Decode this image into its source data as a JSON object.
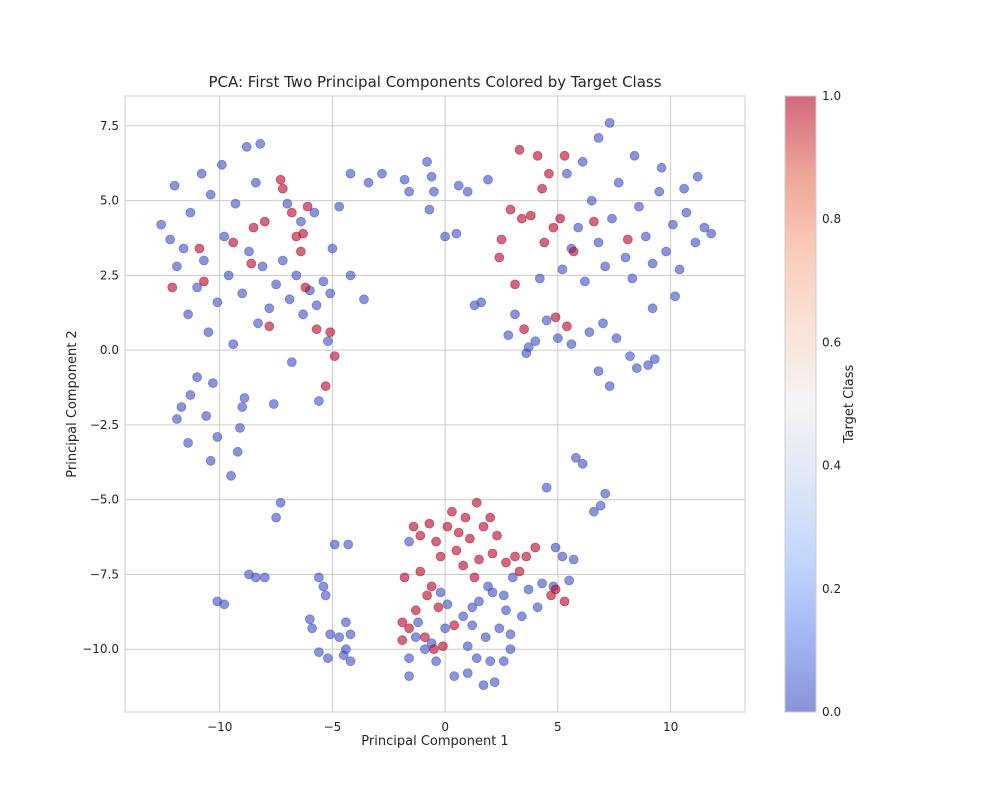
{
  "chart_data": {
    "type": "scatter",
    "title": "PCA: First Two Principal Components Colored by Target Class",
    "xlabel": "Principal Component 1",
    "ylabel": "Principal Component 2",
    "xlim": [
      -14.2,
      13.3
    ],
    "ylim": [
      -12.1,
      8.5
    ],
    "xticks": [
      -10,
      -5,
      0,
      5,
      10
    ],
    "xtick_labels": [
      "−10",
      "−5",
      "0",
      "5",
      "10"
    ],
    "yticks": [
      -10,
      -7.5,
      -5,
      -2.5,
      0,
      2.5,
      5,
      7.5
    ],
    "ytick_labels": [
      "−10.0",
      "−7.5",
      "−5.0",
      "−2.5",
      "0.0",
      "2.5",
      "5.0",
      "7.5"
    ],
    "grid": true,
    "colormap": "coolwarm",
    "colors": {
      "class_0": "#3b4cc0",
      "class_1": "#b40426"
    },
    "marker_alpha": 0.6,
    "colorbar": {
      "label": "Target Class",
      "range": [
        0,
        1
      ],
      "ticks": [
        0,
        0.2,
        0.4,
        0.6,
        0.8,
        1
      ],
      "tick_labels": [
        "0.0",
        "0.2",
        "0.4",
        "0.6",
        "0.8",
        "1.0"
      ],
      "stops": [
        "#3b4cc0",
        "#6788ee",
        "#9abbff",
        "#c9d7f0",
        "#ededed",
        "#f6cfbb",
        "#f7a889",
        "#e26952",
        "#b40426"
      ]
    },
    "series": [
      {
        "target": 0,
        "points": [
          [
            -12.6,
            4.2
          ],
          [
            -12.2,
            3.7
          ],
          [
            -11.9,
            2.8
          ],
          [
            -11.6,
            3.4
          ],
          [
            -11.3,
            4.6
          ],
          [
            -11.0,
            2.1
          ],
          [
            -10.7,
            3.0
          ],
          [
            -10.4,
            5.2
          ],
          [
            -10.1,
            1.6
          ],
          [
            -9.8,
            3.8
          ],
          [
            -9.6,
            2.5
          ],
          [
            -9.3,
            4.9
          ],
          [
            -9.0,
            1.9
          ],
          [
            -8.7,
            3.3
          ],
          [
            -8.4,
            5.6
          ],
          [
            -8.1,
            2.8
          ],
          [
            -7.8,
            1.4
          ],
          [
            -7.5,
            2.2
          ],
          [
            -7.2,
            3.0
          ],
          [
            -6.9,
            1.7
          ],
          [
            -6.6,
            2.5
          ],
          [
            -6.3,
            1.2
          ],
          [
            -6.0,
            2.0
          ],
          [
            -5.7,
            1.5
          ],
          [
            -5.4,
            2.3
          ],
          [
            -5.1,
            1.9
          ],
          [
            -10.5,
            0.6
          ],
          [
            -9.4,
            0.2
          ],
          [
            -8.3,
            0.9
          ],
          [
            -11.4,
            1.2
          ],
          [
            -12.0,
            5.5
          ],
          [
            -10.8,
            5.9
          ],
          [
            -9.9,
            6.2
          ],
          [
            -8.8,
            6.8
          ],
          [
            -8.2,
            6.9
          ],
          [
            -7.0,
            4.9
          ],
          [
            -6.4,
            4.3
          ],
          [
            -5.8,
            4.6
          ],
          [
            -5.0,
            3.4
          ],
          [
            -4.7,
            4.8
          ],
          [
            -4.2,
            2.5
          ],
          [
            -3.6,
            1.7
          ],
          [
            -5.2,
            0.3
          ],
          [
            -6.8,
            -0.4
          ],
          [
            -7.6,
            -1.8
          ],
          [
            -5.6,
            -1.7
          ],
          [
            -11.0,
            -0.9
          ],
          [
            -11.3,
            -1.5
          ],
          [
            -11.7,
            -1.9
          ],
          [
            -11.9,
            -2.3
          ],
          [
            -11.4,
            -3.1
          ],
          [
            -10.3,
            -1.1
          ],
          [
            -10.6,
            -2.2
          ],
          [
            -10.1,
            -2.9
          ],
          [
            -9.1,
            -2.6
          ],
          [
            -9.2,
            -3.4
          ],
          [
            -9.5,
            -4.2
          ],
          [
            -10.4,
            -3.7
          ],
          [
            -9.0,
            -1.9
          ],
          [
            -8.9,
            -1.6
          ],
          [
            -4.2,
            5.9
          ],
          [
            -3.4,
            5.6
          ],
          [
            -2.8,
            5.9
          ],
          [
            -1.8,
            5.7
          ],
          [
            -1.6,
            5.3
          ],
          [
            -0.8,
            6.3
          ],
          [
            -0.6,
            5.8
          ],
          [
            -0.5,
            5.3
          ],
          [
            0.6,
            5.5
          ],
          [
            1.0,
            5.3
          ],
          [
            1.9,
            5.7
          ],
          [
            -0.7,
            4.7
          ],
          [
            0.0,
            3.8
          ],
          [
            0.5,
            3.9
          ],
          [
            1.3,
            1.5
          ],
          [
            1.6,
            1.6
          ],
          [
            -7.3,
            -5.1
          ],
          [
            -7.5,
            -5.6
          ],
          [
            -8.7,
            -7.5
          ],
          [
            -8.4,
            -7.6
          ],
          [
            -8.0,
            -7.6
          ],
          [
            -10.1,
            -8.4
          ],
          [
            -9.8,
            -8.5
          ],
          [
            -5.6,
            -7.6
          ],
          [
            -5.4,
            -7.9
          ],
          [
            -5.3,
            -8.2
          ],
          [
            -6.0,
            -9.0
          ],
          [
            -5.9,
            -9.3
          ],
          [
            -5.1,
            -9.5
          ],
          [
            -4.4,
            -9.1
          ],
          [
            -4.2,
            -9.5
          ],
          [
            -4.7,
            -9.6
          ],
          [
            -4.4,
            -10.0
          ],
          [
            -5.6,
            -10.1
          ],
          [
            -5.2,
            -10.3
          ],
          [
            -4.5,
            -10.2
          ],
          [
            -4.2,
            -10.4
          ],
          [
            -4.9,
            -6.5
          ],
          [
            -4.3,
            -6.5
          ],
          [
            -1.6,
            -6.4
          ],
          [
            5.2,
            2.7
          ],
          [
            5.6,
            3.4
          ],
          [
            5.9,
            4.1
          ],
          [
            6.2,
            2.3
          ],
          [
            6.5,
            5.0
          ],
          [
            6.8,
            3.6
          ],
          [
            7.1,
            2.8
          ],
          [
            7.4,
            4.4
          ],
          [
            7.7,
            5.6
          ],
          [
            8.0,
            3.1
          ],
          [
            8.3,
            2.4
          ],
          [
            8.6,
            4.8
          ],
          [
            8.9,
            3.8
          ],
          [
            9.2,
            2.9
          ],
          [
            9.5,
            5.3
          ],
          [
            9.8,
            3.3
          ],
          [
            10.1,
            4.2
          ],
          [
            10.4,
            2.7
          ],
          [
            10.7,
            4.6
          ],
          [
            11.1,
            3.6
          ],
          [
            11.5,
            4.1
          ],
          [
            11.8,
            3.9
          ],
          [
            5.4,
            5.9
          ],
          [
            6.1,
            6.3
          ],
          [
            6.8,
            7.1
          ],
          [
            7.3,
            7.6
          ],
          [
            8.4,
            6.5
          ],
          [
            9.6,
            6.1
          ],
          [
            10.6,
            5.4
          ],
          [
            11.2,
            5.8
          ],
          [
            5.0,
            0.4
          ],
          [
            5.6,
            0.2
          ],
          [
            6.4,
            0.6
          ],
          [
            7.0,
            0.9
          ],
          [
            7.6,
            0.4
          ],
          [
            8.2,
            -0.2
          ],
          [
            8.5,
            -0.6
          ],
          [
            9.0,
            -0.5
          ],
          [
            9.3,
            -0.3
          ],
          [
            7.3,
            -1.2
          ],
          [
            6.8,
            -0.7
          ],
          [
            9.2,
            1.4
          ],
          [
            10.2,
            1.8
          ],
          [
            4.5,
            1.0
          ],
          [
            4.0,
            0.3
          ],
          [
            3.1,
            1.2
          ],
          [
            2.8,
            0.5
          ],
          [
            3.7,
            0.1
          ],
          [
            4.2,
            2.4
          ],
          [
            3.6,
            -0.1
          ],
          [
            7.1,
            -4.8
          ],
          [
            6.9,
            -5.2
          ],
          [
            6.6,
            -5.4
          ],
          [
            5.8,
            -3.6
          ],
          [
            6.1,
            -3.8
          ],
          [
            4.5,
            -4.6
          ],
          [
            4.9,
            -6.6
          ],
          [
            5.2,
            -6.9
          ],
          [
            5.7,
            -7.0
          ],
          [
            4.3,
            -7.8
          ],
          [
            4.8,
            -7.9
          ],
          [
            5.5,
            -7.7
          ],
          [
            3.7,
            -8.0
          ],
          [
            4.1,
            -8.6
          ],
          [
            3.4,
            -8.9
          ],
          [
            3.0,
            -7.6
          ],
          [
            -0.2,
            -8.1
          ],
          [
            0.1,
            -8.5
          ],
          [
            0.8,
            -8.9
          ],
          [
            1.2,
            -9.2
          ],
          [
            1.5,
            -8.4
          ],
          [
            1.8,
            -9.6
          ],
          [
            2.1,
            -8.1
          ],
          [
            2.4,
            -9.3
          ],
          [
            2.7,
            -8.7
          ],
          [
            1.0,
            -9.9
          ],
          [
            1.4,
            -10.3
          ],
          [
            2.0,
            -10.4
          ],
          [
            2.6,
            -10.4
          ],
          [
            1.7,
            -11.2
          ],
          [
            1.0,
            -10.8
          ],
          [
            0.4,
            -10.9
          ],
          [
            -0.4,
            -10.4
          ],
          [
            -0.9,
            -10.0
          ],
          [
            -1.3,
            -9.6
          ],
          [
            -1.6,
            -10.3
          ],
          [
            -1.6,
            -10.9
          ],
          [
            -1.2,
            -9.1
          ],
          [
            -0.6,
            -9.8
          ],
          [
            0.0,
            -9.3
          ],
          [
            2.2,
            -11.1
          ],
          [
            2.9,
            -10.0
          ],
          [
            2.6,
            -8.2
          ],
          [
            1.9,
            -7.9
          ],
          [
            2.9,
            -9.5
          ],
          [
            1.2,
            -8.6
          ]
        ]
      },
      {
        "target": 1,
        "points": [
          [
            -10.9,
            3.4
          ],
          [
            -9.4,
            3.6
          ],
          [
            -8.6,
            2.9
          ],
          [
            -8.5,
            4.1
          ],
          [
            -8.0,
            4.3
          ],
          [
            -7.3,
            5.7
          ],
          [
            -7.2,
            5.4
          ],
          [
            -6.8,
            4.6
          ],
          [
            -6.6,
            3.8
          ],
          [
            -6.4,
            3.3
          ],
          [
            -6.3,
            3.9
          ],
          [
            -6.1,
            4.8
          ],
          [
            -6.2,
            2.1
          ],
          [
            -5.7,
            0.7
          ],
          [
            -5.1,
            0.6
          ],
          [
            -4.9,
            -0.2
          ],
          [
            -5.3,
            -1.2
          ],
          [
            -7.8,
            0.8
          ],
          [
            -10.7,
            2.3
          ],
          [
            -12.1,
            2.1
          ],
          [
            2.4,
            3.1
          ],
          [
            2.5,
            3.7
          ],
          [
            2.9,
            4.7
          ],
          [
            3.4,
            4.4
          ],
          [
            3.8,
            4.5
          ],
          [
            3.3,
            6.7
          ],
          [
            4.1,
            6.5
          ],
          [
            4.6,
            5.9
          ],
          [
            5.1,
            4.4
          ],
          [
            4.8,
            4.1
          ],
          [
            5.7,
            3.3
          ],
          [
            6.6,
            4.3
          ],
          [
            8.1,
            3.7
          ],
          [
            4.4,
            3.6
          ],
          [
            3.1,
            2.2
          ],
          [
            3.5,
            0.7
          ],
          [
            4.9,
            1.1
          ],
          [
            5.4,
            0.8
          ],
          [
            5.3,
            6.5
          ],
          [
            4.3,
            5.4
          ],
          [
            -1.4,
            -5.9
          ],
          [
            -1.1,
            -6.2
          ],
          [
            -0.7,
            -5.8
          ],
          [
            -0.4,
            -6.4
          ],
          [
            0.1,
            -5.9
          ],
          [
            0.3,
            -5.4
          ],
          [
            0.6,
            -6.1
          ],
          [
            0.9,
            -5.6
          ],
          [
            1.1,
            -6.3
          ],
          [
            1.4,
            -5.1
          ],
          [
            1.7,
            -5.9
          ],
          [
            2.0,
            -5.6
          ],
          [
            2.3,
            -6.2
          ],
          [
            0.5,
            -6.7
          ],
          [
            -0.2,
            -6.9
          ],
          [
            0.8,
            -7.2
          ],
          [
            1.5,
            -7.0
          ],
          [
            2.1,
            -6.8
          ],
          [
            2.7,
            -7.1
          ],
          [
            3.1,
            -6.9
          ],
          [
            3.6,
            -6.9
          ],
          [
            4.0,
            -6.6
          ],
          [
            3.3,
            -7.4
          ],
          [
            -1.8,
            -7.6
          ],
          [
            -1.1,
            -7.4
          ],
          [
            -0.6,
            -7.9
          ],
          [
            -0.3,
            -8.6
          ],
          [
            -1.3,
            -8.7
          ],
          [
            -1.6,
            -9.3
          ],
          [
            -1.9,
            -9.7
          ],
          [
            -0.9,
            -9.6
          ],
          [
            -0.5,
            -10.0
          ],
          [
            -0.1,
            -9.9
          ],
          [
            0.4,
            -9.2
          ],
          [
            -0.8,
            -8.2
          ],
          [
            1.3,
            -7.6
          ],
          [
            4.9,
            -8.0
          ],
          [
            5.3,
            -8.4
          ],
          [
            4.7,
            -8.2
          ],
          [
            -1.9,
            -9.1
          ]
        ]
      }
    ]
  }
}
